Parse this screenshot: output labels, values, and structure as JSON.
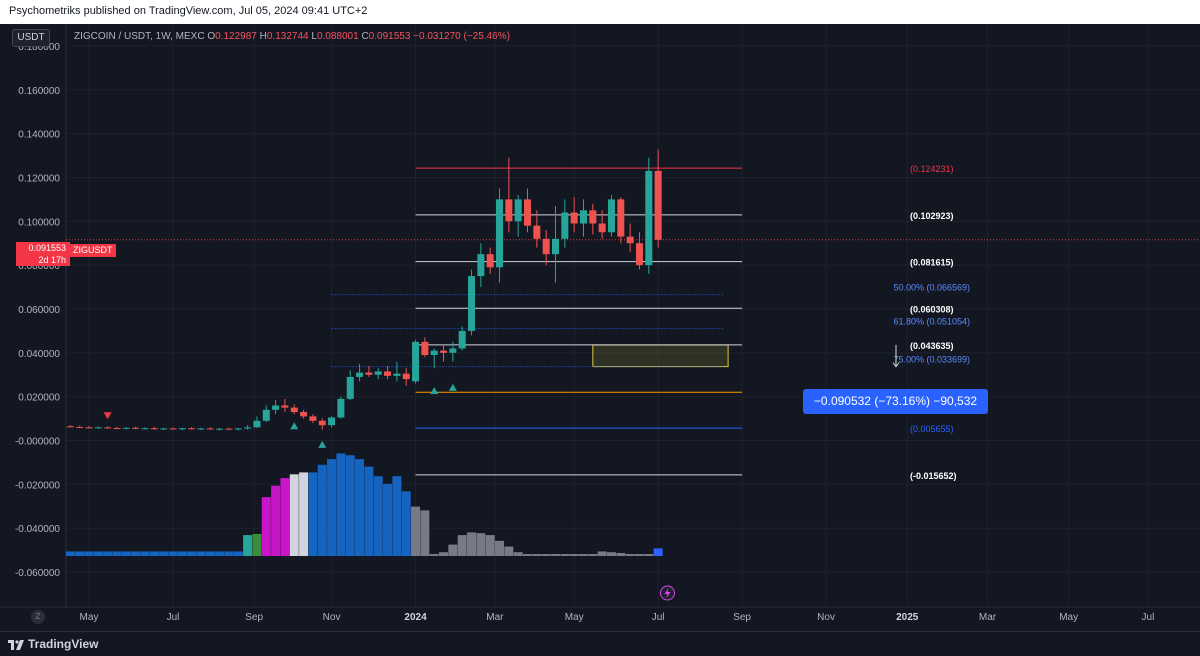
{
  "header": {
    "publish_line": "Psychometriks published on TradingView.com, Jul 05, 2024 09:41 UTC+2"
  },
  "footer": {
    "brand": "TradingView"
  },
  "toolbar": {
    "currency_label": "USDT",
    "reset_label": "Z"
  },
  "legend": {
    "symbol": "ZIGCOIN / USDT, 1W, MEXC",
    "o_key": "O",
    "o": "0.122987",
    "h_key": "H",
    "h": "0.132744",
    "l_key": "L",
    "l": "0.088001",
    "c_key": "C",
    "c": "0.091553",
    "change": "−0.031270 (−25.46%)"
  },
  "price_tag": {
    "price": "0.091553",
    "countdown": "2d 17h",
    "ticker": "ZIGUSDT"
  },
  "measurement": {
    "text": "−0.090532 (−73.16%) −90,532"
  },
  "colors": {
    "background": "#131722",
    "up": "#26a69a",
    "down": "#ef5350",
    "grid": "#1e222d",
    "accent_blue": "#2962ff",
    "rect_yellow": "#d9cc3b"
  },
  "chart_data": {
    "type": "candlestick",
    "symbol": "ZIGCOIN / USDT",
    "interval": "1W",
    "exchange": "MEXC",
    "ylim": [
      -0.065,
      0.19
    ],
    "y_ticks": [
      "0.180000",
      "0.160000",
      "0.140000",
      "0.120000",
      "0.100000",
      "0.080000",
      "0.060000",
      "0.040000",
      "0.020000",
      "-0.000000",
      "-0.020000",
      "-0.040000",
      "-0.060000"
    ],
    "y_tick_values": [
      0.18,
      0.16,
      0.14,
      0.12,
      0.1,
      0.08,
      0.06,
      0.04,
      0.02,
      0.0,
      -0.02,
      -0.04,
      -0.06
    ],
    "x_ticks": [
      "May",
      "Jul",
      "Sep",
      "Nov",
      "2024",
      "Mar",
      "May",
      "Jul",
      "Sep",
      "Nov",
      "2025",
      "Mar",
      "May",
      "Jul"
    ],
    "x_tick_weeks": [
      0,
      9,
      17.7,
      26,
      35,
      43.5,
      52,
      61,
      70,
      79,
      87.7,
      96.3,
      105,
      113.5
    ],
    "candles": [
      {
        "w": -2,
        "o": 0.0065,
        "h": 0.007,
        "l": 0.006,
        "c": 0.0062
      },
      {
        "w": -1,
        "o": 0.0062,
        "h": 0.0068,
        "l": 0.0058,
        "c": 0.006
      },
      {
        "w": 0,
        "o": 0.006,
        "h": 0.0066,
        "l": 0.0055,
        "c": 0.0058
      },
      {
        "w": 1,
        "o": 0.0058,
        "h": 0.0064,
        "l": 0.0054,
        "c": 0.006
      },
      {
        "w": 2,
        "o": 0.006,
        "h": 0.0065,
        "l": 0.0054,
        "c": 0.0057
      },
      {
        "w": 3,
        "o": 0.0057,
        "h": 0.0062,
        "l": 0.0052,
        "c": 0.0055
      },
      {
        "w": 4,
        "o": 0.0055,
        "h": 0.006,
        "l": 0.005,
        "c": 0.0058
      },
      {
        "w": 5,
        "o": 0.0058,
        "h": 0.0063,
        "l": 0.0052,
        "c": 0.0054
      },
      {
        "w": 6,
        "o": 0.0054,
        "h": 0.006,
        "l": 0.005,
        "c": 0.0056
      },
      {
        "w": 7,
        "o": 0.0056,
        "h": 0.0062,
        "l": 0.005,
        "c": 0.0053
      },
      {
        "w": 8,
        "o": 0.0053,
        "h": 0.0058,
        "l": 0.0048,
        "c": 0.0055
      },
      {
        "w": 9,
        "o": 0.0055,
        "h": 0.006,
        "l": 0.005,
        "c": 0.0052
      },
      {
        "w": 10,
        "o": 0.0052,
        "h": 0.0058,
        "l": 0.0046,
        "c": 0.0056
      },
      {
        "w": 11,
        "o": 0.0056,
        "h": 0.0061,
        "l": 0.005,
        "c": 0.0053
      },
      {
        "w": 12,
        "o": 0.0053,
        "h": 0.0058,
        "l": 0.0048,
        "c": 0.0055
      },
      {
        "w": 13,
        "o": 0.0055,
        "h": 0.006,
        "l": 0.005,
        "c": 0.0052
      },
      {
        "w": 14,
        "o": 0.0052,
        "h": 0.0057,
        "l": 0.0046,
        "c": 0.0054
      },
      {
        "w": 15,
        "o": 0.0054,
        "h": 0.0059,
        "l": 0.0048,
        "c": 0.0051
      },
      {
        "w": 16,
        "o": 0.0051,
        "h": 0.0057,
        "l": 0.0046,
        "c": 0.0055
      },
      {
        "w": 17,
        "o": 0.0055,
        "h": 0.007,
        "l": 0.005,
        "c": 0.006
      },
      {
        "w": 18,
        "o": 0.006,
        "h": 0.011,
        "l": 0.0058,
        "c": 0.009
      },
      {
        "w": 19,
        "o": 0.009,
        "h": 0.016,
        "l": 0.0085,
        "c": 0.014
      },
      {
        "w": 20,
        "o": 0.014,
        "h": 0.0185,
        "l": 0.012,
        "c": 0.016
      },
      {
        "w": 21,
        "o": 0.016,
        "h": 0.019,
        "l": 0.013,
        "c": 0.015
      },
      {
        "w": 22,
        "o": 0.015,
        "h": 0.0165,
        "l": 0.012,
        "c": 0.013
      },
      {
        "w": 23,
        "o": 0.013,
        "h": 0.014,
        "l": 0.01,
        "c": 0.011
      },
      {
        "w": 24,
        "o": 0.011,
        "h": 0.012,
        "l": 0.008,
        "c": 0.009
      },
      {
        "w": 25,
        "o": 0.009,
        "h": 0.01,
        "l": 0.005,
        "c": 0.007
      },
      {
        "w": 26,
        "o": 0.007,
        "h": 0.011,
        "l": 0.006,
        "c": 0.0105
      },
      {
        "w": 27,
        "o": 0.0105,
        "h": 0.02,
        "l": 0.01,
        "c": 0.019
      },
      {
        "w": 28,
        "o": 0.019,
        "h": 0.032,
        "l": 0.0185,
        "c": 0.029
      },
      {
        "w": 29,
        "o": 0.029,
        "h": 0.035,
        "l": 0.027,
        "c": 0.031
      },
      {
        "w": 30,
        "o": 0.031,
        "h": 0.034,
        "l": 0.029,
        "c": 0.03
      },
      {
        "w": 31,
        "o": 0.03,
        "h": 0.033,
        "l": 0.028,
        "c": 0.0315
      },
      {
        "w": 32,
        "o": 0.0315,
        "h": 0.034,
        "l": 0.028,
        "c": 0.0295
      },
      {
        "w": 33,
        "o": 0.0295,
        "h": 0.036,
        "l": 0.027,
        "c": 0.0305
      },
      {
        "w": 34,
        "o": 0.0305,
        "h": 0.033,
        "l": 0.025,
        "c": 0.028
      },
      {
        "w": 35,
        "o": 0.027,
        "h": 0.046,
        "l": 0.026,
        "c": 0.045
      },
      {
        "w": 36,
        "o": 0.045,
        "h": 0.047,
        "l": 0.038,
        "c": 0.039
      },
      {
        "w": 37,
        "o": 0.039,
        "h": 0.042,
        "l": 0.033,
        "c": 0.041
      },
      {
        "w": 38,
        "o": 0.041,
        "h": 0.044,
        "l": 0.036,
        "c": 0.04
      },
      {
        "w": 39,
        "o": 0.04,
        "h": 0.045,
        "l": 0.036,
        "c": 0.042
      },
      {
        "w": 40,
        "o": 0.042,
        "h": 0.052,
        "l": 0.041,
        "c": 0.05
      },
      {
        "w": 41,
        "o": 0.05,
        "h": 0.078,
        "l": 0.048,
        "c": 0.075
      },
      {
        "w": 42,
        "o": 0.075,
        "h": 0.09,
        "l": 0.07,
        "c": 0.085
      },
      {
        "w": 43,
        "o": 0.085,
        "h": 0.088,
        "l": 0.076,
        "c": 0.079
      },
      {
        "w": 44,
        "o": 0.079,
        "h": 0.115,
        "l": 0.072,
        "c": 0.11
      },
      {
        "w": 45,
        "o": 0.11,
        "h": 0.129,
        "l": 0.095,
        "c": 0.1
      },
      {
        "w": 46,
        "o": 0.1,
        "h": 0.112,
        "l": 0.093,
        "c": 0.11
      },
      {
        "w": 47,
        "o": 0.11,
        "h": 0.115,
        "l": 0.095,
        "c": 0.098
      },
      {
        "w": 48,
        "o": 0.098,
        "h": 0.105,
        "l": 0.088,
        "c": 0.092
      },
      {
        "w": 49,
        "o": 0.092,
        "h": 0.096,
        "l": 0.08,
        "c": 0.085
      },
      {
        "w": 50,
        "o": 0.085,
        "h": 0.107,
        "l": 0.072,
        "c": 0.092
      },
      {
        "w": 51,
        "o": 0.092,
        "h": 0.11,
        "l": 0.088,
        "c": 0.104
      },
      {
        "w": 52,
        "o": 0.104,
        "h": 0.111,
        "l": 0.095,
        "c": 0.099
      },
      {
        "w": 53,
        "o": 0.099,
        "h": 0.11,
        "l": 0.093,
        "c": 0.105
      },
      {
        "w": 54,
        "o": 0.105,
        "h": 0.108,
        "l": 0.094,
        "c": 0.099
      },
      {
        "w": 55,
        "o": 0.099,
        "h": 0.105,
        "l": 0.092,
        "c": 0.095
      },
      {
        "w": 56,
        "o": 0.095,
        "h": 0.112,
        "l": 0.093,
        "c": 0.11
      },
      {
        "w": 57,
        "o": 0.11,
        "h": 0.111,
        "l": 0.09,
        "c": 0.093
      },
      {
        "w": 58,
        "o": 0.093,
        "h": 0.099,
        "l": 0.086,
        "c": 0.09
      },
      {
        "w": 59,
        "o": 0.09,
        "h": 0.095,
        "l": 0.078,
        "c": 0.08
      },
      {
        "w": 60,
        "o": 0.08,
        "h": 0.129,
        "l": 0.076,
        "c": 0.123
      },
      {
        "w": 61,
        "o": 0.123,
        "h": 0.1327,
        "l": 0.088,
        "c": 0.0916
      }
    ],
    "indicator_bars": [
      {
        "w": -2,
        "v": 0.12,
        "color": "#1565c0"
      },
      {
        "w": -1,
        "v": 0.12,
        "color": "#1565c0"
      },
      {
        "w": 0,
        "v": 0.12,
        "color": "#1565c0"
      },
      {
        "w": 1,
        "v": 0.12,
        "color": "#1565c0"
      },
      {
        "w": 2,
        "v": 0.12,
        "color": "#1565c0"
      },
      {
        "w": 3,
        "v": 0.12,
        "color": "#1565c0"
      },
      {
        "w": 4,
        "v": 0.12,
        "color": "#1565c0"
      },
      {
        "w": 5,
        "v": 0.12,
        "color": "#1565c0"
      },
      {
        "w": 6,
        "v": 0.12,
        "color": "#1565c0"
      },
      {
        "w": 7,
        "v": 0.12,
        "color": "#1565c0"
      },
      {
        "w": 8,
        "v": 0.12,
        "color": "#1565c0"
      },
      {
        "w": 9,
        "v": 0.12,
        "color": "#1565c0"
      },
      {
        "w": 10,
        "v": 0.12,
        "color": "#1565c0"
      },
      {
        "w": 11,
        "v": 0.12,
        "color": "#1565c0"
      },
      {
        "w": 12,
        "v": 0.12,
        "color": "#1565c0"
      },
      {
        "w": 13,
        "v": 0.12,
        "color": "#1565c0"
      },
      {
        "w": 14,
        "v": 0.12,
        "color": "#1565c0"
      },
      {
        "w": 15,
        "v": 0.12,
        "color": "#1565c0"
      },
      {
        "w": 16,
        "v": 0.12,
        "color": "#1565c0"
      },
      {
        "w": 17,
        "v": 0.55,
        "color": "#26a69a"
      },
      {
        "w": 18,
        "v": 0.58,
        "color": "#388e3c"
      },
      {
        "w": 19,
        "v": 1.55,
        "color": "#c915c9"
      },
      {
        "w": 20,
        "v": 1.85,
        "color": "#c915c9"
      },
      {
        "w": 21,
        "v": 2.05,
        "color": "#c915c9"
      },
      {
        "w": 22,
        "v": 2.15,
        "color": "#d1d4dc"
      },
      {
        "w": 23,
        "v": 2.2,
        "color": "#d1d4dc"
      },
      {
        "w": 24,
        "v": 2.2,
        "color": "#1565c0"
      },
      {
        "w": 25,
        "v": 2.4,
        "color": "#1565c0"
      },
      {
        "w": 26,
        "v": 2.55,
        "color": "#1565c0"
      },
      {
        "w": 27,
        "v": 2.7,
        "color": "#1565c0"
      },
      {
        "w": 28,
        "v": 2.65,
        "color": "#1565c0"
      },
      {
        "w": 29,
        "v": 2.55,
        "color": "#1565c0"
      },
      {
        "w": 30,
        "v": 2.35,
        "color": "#1565c0"
      },
      {
        "w": 31,
        "v": 2.1,
        "color": "#1565c0"
      },
      {
        "w": 32,
        "v": 1.9,
        "color": "#1565c0"
      },
      {
        "w": 33,
        "v": 2.1,
        "color": "#1565c0"
      },
      {
        "w": 34,
        "v": 1.7,
        "color": "#1565c0"
      },
      {
        "w": 35,
        "v": 1.3,
        "color": "#787b86"
      },
      {
        "w": 36,
        "v": 1.2,
        "color": "#787b86"
      },
      {
        "w": 37,
        "v": 0.0,
        "color": "#787b86"
      },
      {
        "w": 38,
        "v": 0.1,
        "color": "#787b86"
      },
      {
        "w": 39,
        "v": 0.3,
        "color": "#787b86"
      },
      {
        "w": 40,
        "v": 0.55,
        "color": "#787b86"
      },
      {
        "w": 41,
        "v": 0.62,
        "color": "#787b86"
      },
      {
        "w": 42,
        "v": 0.6,
        "color": "#787b86"
      },
      {
        "w": 43,
        "v": 0.55,
        "color": "#787b86"
      },
      {
        "w": 44,
        "v": 0.4,
        "color": "#787b86"
      },
      {
        "w": 45,
        "v": 0.25,
        "color": "#787b86"
      },
      {
        "w": 46,
        "v": 0.1,
        "color": "#787b86"
      },
      {
        "w": 47,
        "v": 0.05,
        "color": "#787b86"
      },
      {
        "w": 48,
        "v": 0.05,
        "color": "#787b86"
      },
      {
        "w": 49,
        "v": 0.05,
        "color": "#787b86"
      },
      {
        "w": 50,
        "v": 0.05,
        "color": "#787b86"
      },
      {
        "w": 51,
        "v": 0.05,
        "color": "#787b86"
      },
      {
        "w": 52,
        "v": 0.05,
        "color": "#787b86"
      },
      {
        "w": 53,
        "v": 0.05,
        "color": "#787b86"
      },
      {
        "w": 54,
        "v": 0.05,
        "color": "#787b86"
      },
      {
        "w": 55,
        "v": 0.12,
        "color": "#787b86"
      },
      {
        "w": 56,
        "v": 0.1,
        "color": "#787b86"
      },
      {
        "w": 57,
        "v": 0.08,
        "color": "#787b86"
      },
      {
        "w": 58,
        "v": 0.05,
        "color": "#787b86"
      },
      {
        "w": 59,
        "v": 0.05,
        "color": "#787b86"
      },
      {
        "w": 60,
        "v": 0.05,
        "color": "#787b86"
      },
      {
        "w": 61,
        "v": 0.2,
        "color": "#2962ff"
      }
    ],
    "horizontal_levels": [
      {
        "value": 0.124231,
        "label": "(0.124231)",
        "color": "#f23645",
        "w_from": 35,
        "w_to": 70
      },
      {
        "value": 0.102923,
        "label": "(0.102923)",
        "color": "#d1d4dc",
        "w_from": 35,
        "w_to": 70
      },
      {
        "value": 0.081615,
        "label": "(0.081615)",
        "color": "#d1d4dc",
        "w_from": 35,
        "w_to": 70
      },
      {
        "value": 0.060308,
        "label": "(0.060308)",
        "color": "#d1d4dc",
        "w_from": 35,
        "w_to": 70
      },
      {
        "value": 0.043635,
        "label": "(0.043635)",
        "color": "#d1d4dc",
        "w_from": 35,
        "w_to": 70
      },
      {
        "value": 0.005655,
        "label": "(0.005655)",
        "color": "#2962ff",
        "w_from": 35,
        "w_to": 70
      },
      {
        "value": -0.015652,
        "label": "(-0.015652)",
        "color": "#d1d4dc",
        "w_from": 35,
        "w_to": 70
      }
    ],
    "dotted_levels": [
      {
        "value": 0.066569,
        "label": "50.00% (0.066569)",
        "w_from": 26,
        "w_to": 68
      },
      {
        "value": 0.051054,
        "label": "61.80% (0.051054)",
        "w_from": 26,
        "w_to": 68
      },
      {
        "value": 0.033699,
        "label": "75.00% (0.033699)",
        "w_from": 26,
        "w_to": 68
      }
    ],
    "orange_line": {
      "value": 0.022,
      "w_from": 35,
      "w_to": 70
    },
    "zone": {
      "y_top": 0.0436,
      "y_bottom": 0.0337,
      "w_from": 54,
      "w_to": 68.5
    },
    "current_price": 0.091553
  }
}
